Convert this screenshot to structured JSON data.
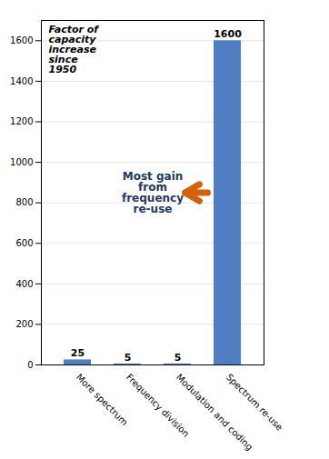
{
  "chart_data": {
    "type": "bar",
    "categories": [
      "More spectrum",
      "Frequency division",
      "Modulation and coding",
      "Spectrum re-use"
    ],
    "values": [
      25,
      5,
      5,
      1600
    ],
    "color": "#4F7EC2",
    "ylim": [
      0,
      1700
    ],
    "yticks": [
      0,
      200,
      400,
      600,
      800,
      1000,
      1200,
      1400,
      1600
    ],
    "ylabel": "Factor of\ncapacity\nincrease\nsince\n1950",
    "annotations": [
      {
        "text": "Most gain\nfrom\nfrequency\nre-use",
        "color": "#1F3864"
      },
      {
        "type": "arrow",
        "color": "#D4600A"
      }
    ],
    "data_labels": true,
    "grid": true
  }
}
